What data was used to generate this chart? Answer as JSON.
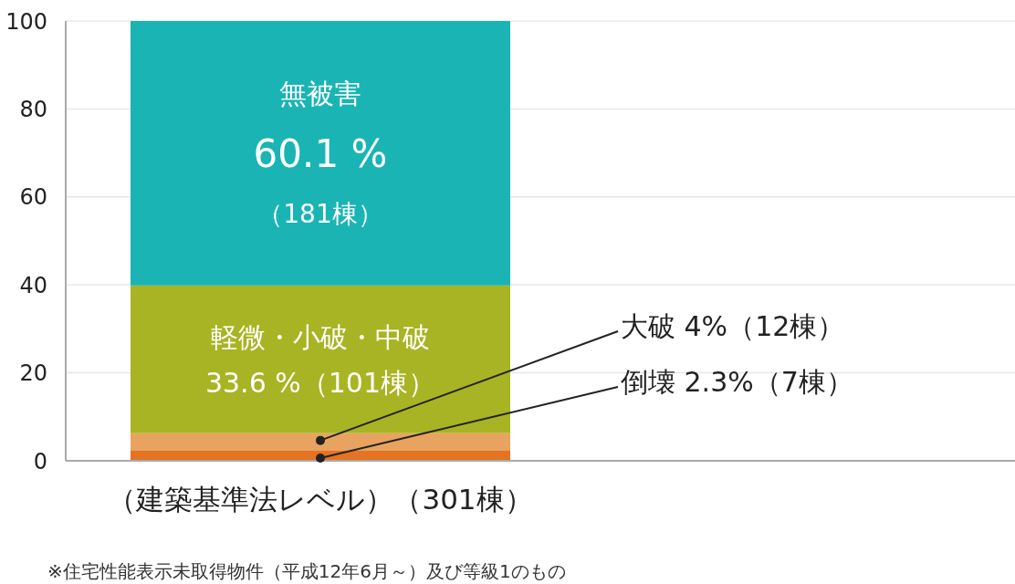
{
  "chart_data": {
    "type": "bar",
    "stacked": true,
    "categories": [
      "（建築基準法レベル）（301棟）"
    ],
    "series": [
      {
        "color": "#e47323",
        "values": [
          2.3
        ]
      },
      {
        "color": "#e8a360",
        "values": [
          4
        ]
      },
      {
        "name": "軽微・小破・中破",
        "color": "#a8b423",
        "values": [
          33.6
        ],
        "value_labels": [
          "33.6 %（101棟）"
        ]
      },
      {
        "name": "無被害",
        "color": "#1bb4b4",
        "values": [
          60.1
        ],
        "value_labels": [
          "60.1 %\n（181棟）"
        ]
      }
    ],
    "ylim": [
      0,
      100
    ],
    "yticks": [
      0,
      20,
      40,
      60,
      80,
      100
    ],
    "grid": "y",
    "annotations": [
      {
        "text": "大破 4%（12棟）",
        "x": "（建築基準法レベル）（301棟）",
        "y": 6.3
      },
      {
        "text": "倒壊 2.3%（7棟）",
        "x": "（建築基準法レベル）（301棟）",
        "y": 2.3
      },
      "※住宅性能表示未取得物件（平成12年6月～）及び等級1のもの"
    ]
  }
}
